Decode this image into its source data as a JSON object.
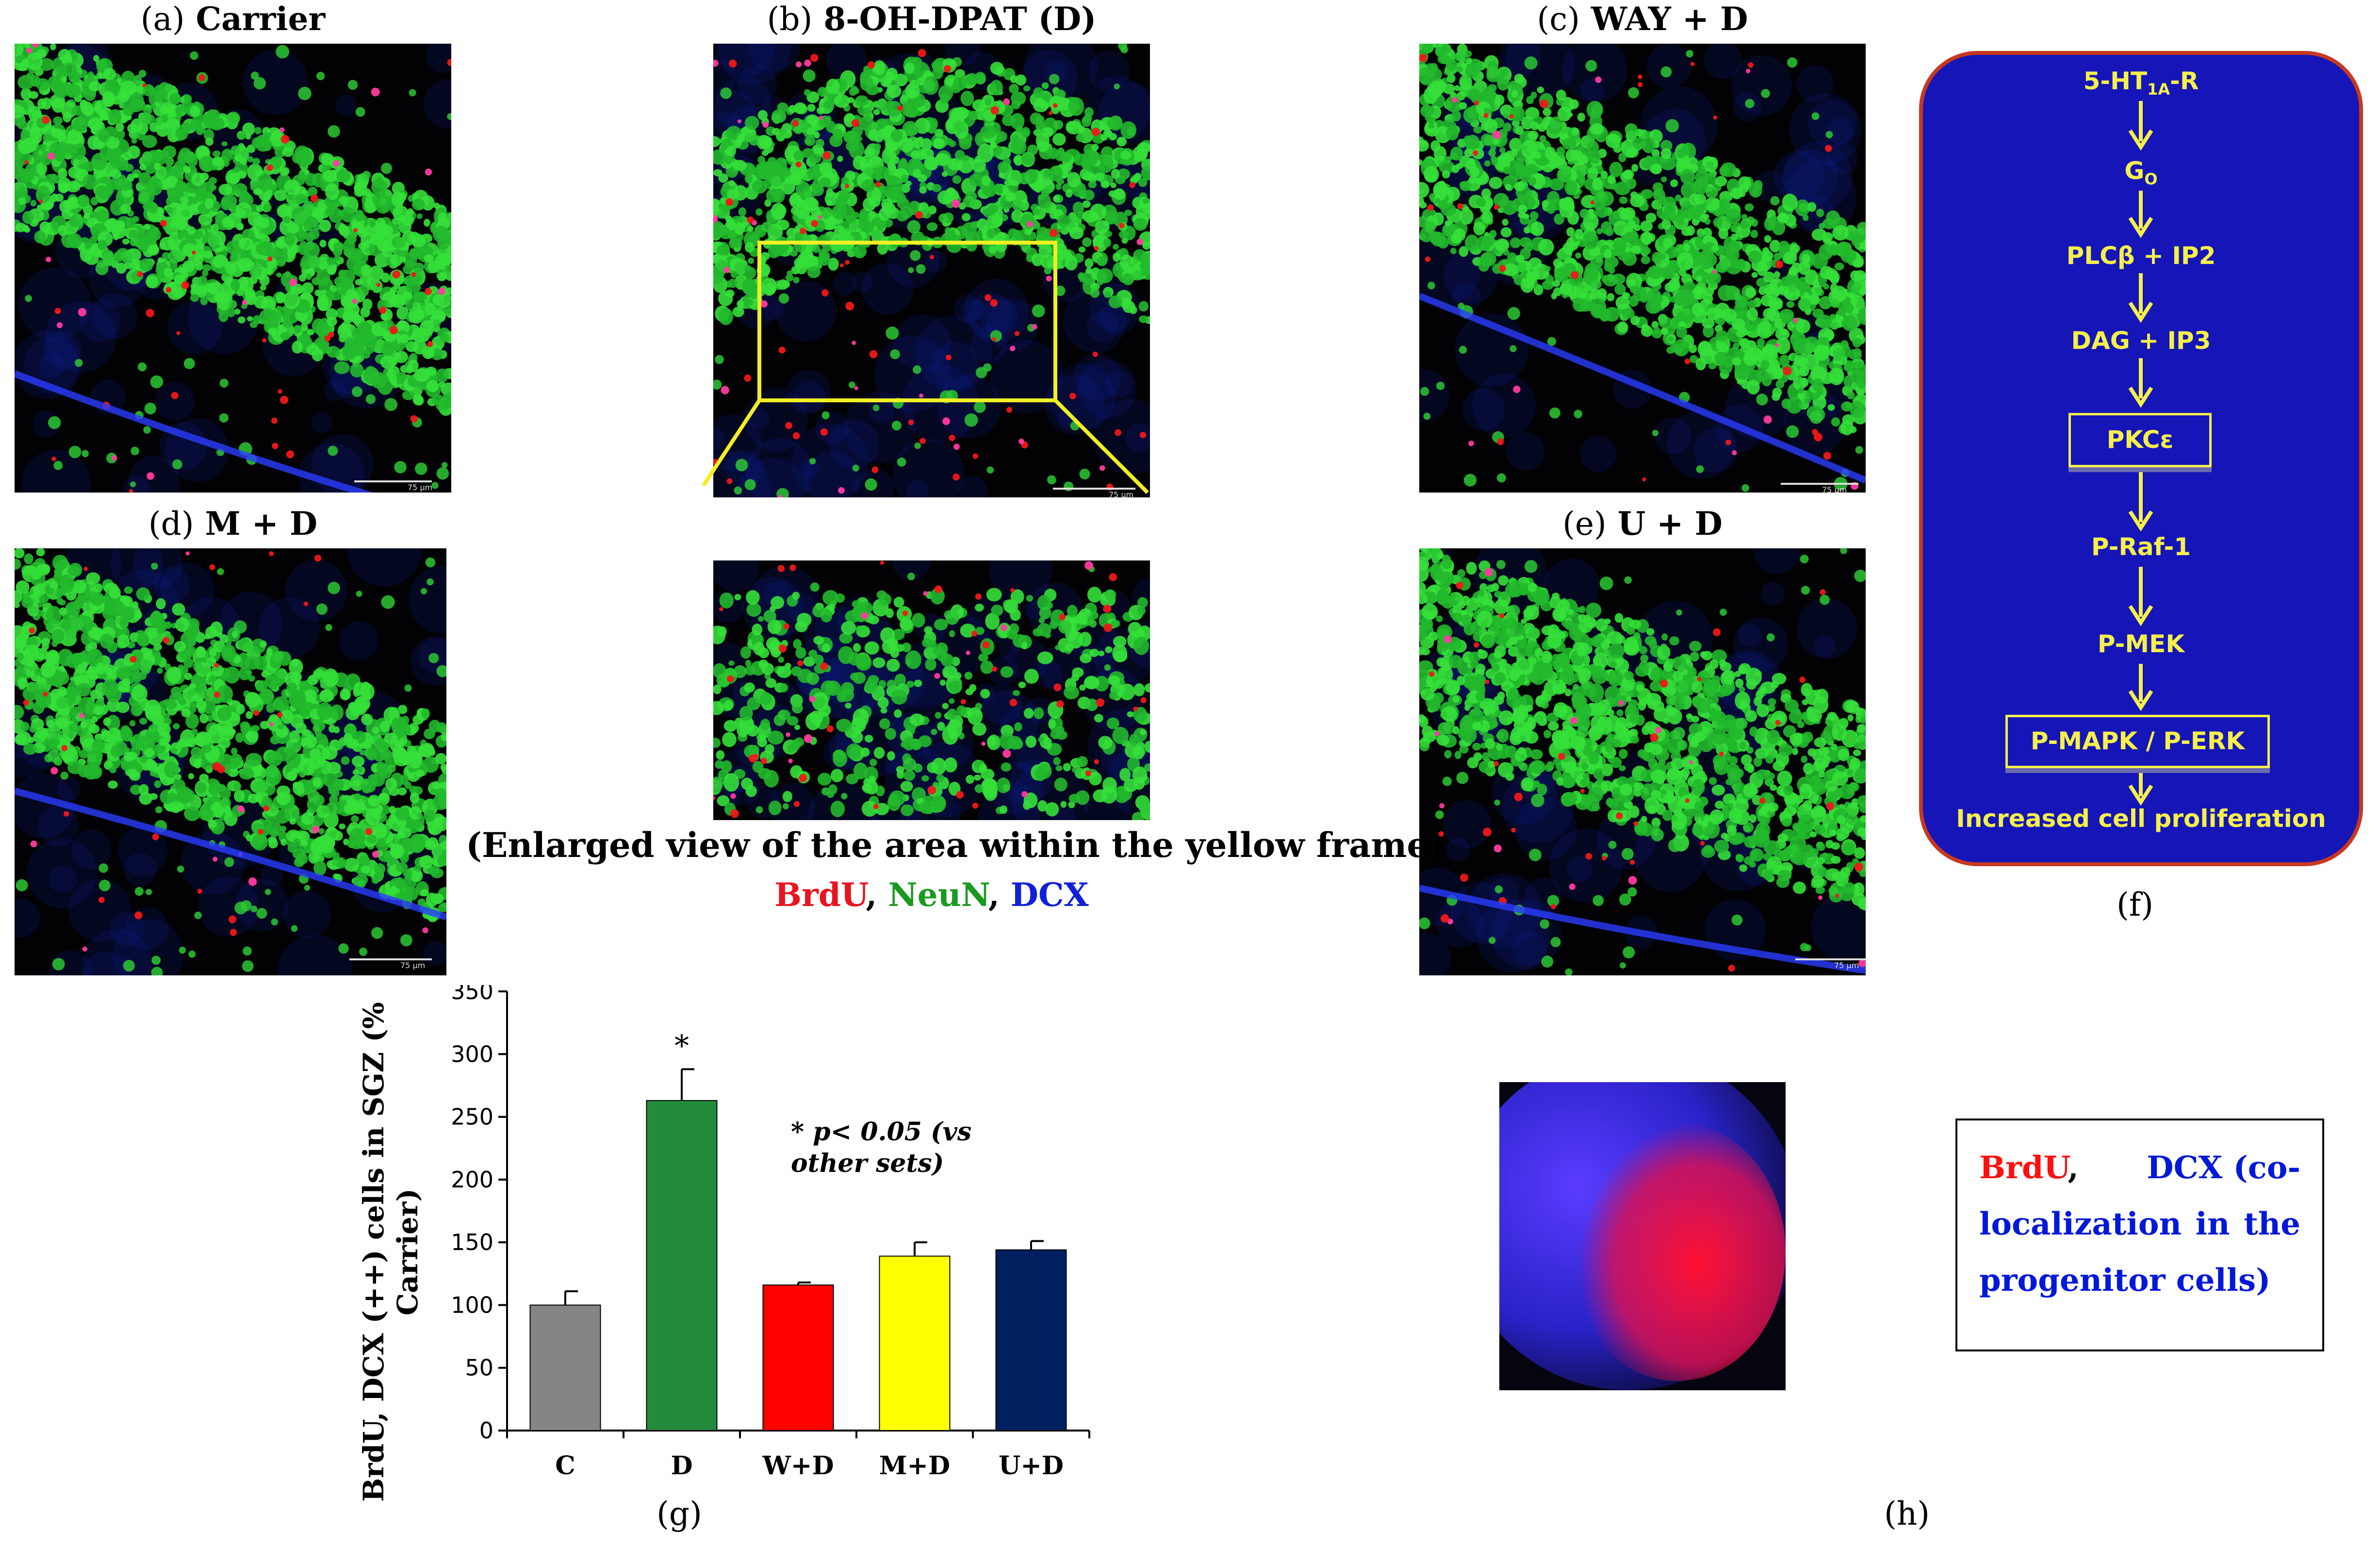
{
  "panels": {
    "a": {
      "tag": "(a)",
      "title": "Carrier"
    },
    "b": {
      "tag": "(b)",
      "title": "8-OH-DPAT (D)"
    },
    "c": {
      "tag": "(c)",
      "title": "WAY + D"
    },
    "d": {
      "tag": "(d)",
      "title": "M + D"
    },
    "e": {
      "tag": "(e)",
      "title": "U + D"
    },
    "f": {
      "tag": "(f)"
    },
    "g": {
      "tag": "(g)"
    },
    "h": {
      "tag": "(h)"
    }
  },
  "enlarged_caption": "(Enlarged view of the area within the yellow frame)",
  "stain_legend": {
    "brdu": "BrdU",
    "sep1": ", ",
    "neun": "NeuN",
    "sep2": ", ",
    "dcx": "DCX",
    "colors": {
      "brdu": "#e8141e",
      "neun": "#1a9a20",
      "dcx": "#1020d8"
    }
  },
  "scale_labels": {
    "b": "75 µm",
    "c": "75 µm",
    "d": "75 µm",
    "e": "75 µm",
    "a": "75 µm"
  },
  "pathway": {
    "n1_main": "5-HT",
    "n1_sub": "1A",
    "n1_tail": "-R",
    "n2_main": "G",
    "n2_sub": "O",
    "n3": "PLCβ + IP2",
    "n4": "DAG + IP3",
    "n5": "PKCε",
    "n6": "P-Raf-1",
    "n7": "P-MEK",
    "n8": "P-MAPK / P-ERK",
    "n9": "Increased cell proliferation",
    "colors": {
      "background": "#1515b8",
      "border": "#c8381e",
      "text": "#f5f04a"
    }
  },
  "chart_data": {
    "type": "bar",
    "categories": [
      "C",
      "D",
      "W+D",
      "M+D",
      "U+D"
    ],
    "values": [
      100,
      263,
      116,
      139,
      144
    ],
    "errors": [
      11,
      25,
      2,
      11,
      7
    ],
    "colors": [
      "#858585",
      "#238c3c",
      "#ff0000",
      "#ffff00",
      "#002060"
    ],
    "ylabel": "BrdU, DCX (++) cells in SGZ (% Carrier)",
    "ylabel_line1": "BrdU, DCX (++) cells in SGZ (%",
    "ylabel_line2": "Carrier)",
    "ylim": [
      0,
      350
    ],
    "yticks": [
      0,
      50,
      100,
      150,
      200,
      250,
      300,
      350
    ],
    "significance_marker": "*",
    "significance_on": "D",
    "annotation_line1": "* p< 0.05 (vs",
    "annotation_line2": "other sets)",
    "grid": false
  },
  "legend_h": {
    "brdu": "BrdU",
    "comma": ",",
    "line1_rest": "DCX (co-",
    "line2": "localization in the",
    "line3": "progenitor cells)"
  }
}
